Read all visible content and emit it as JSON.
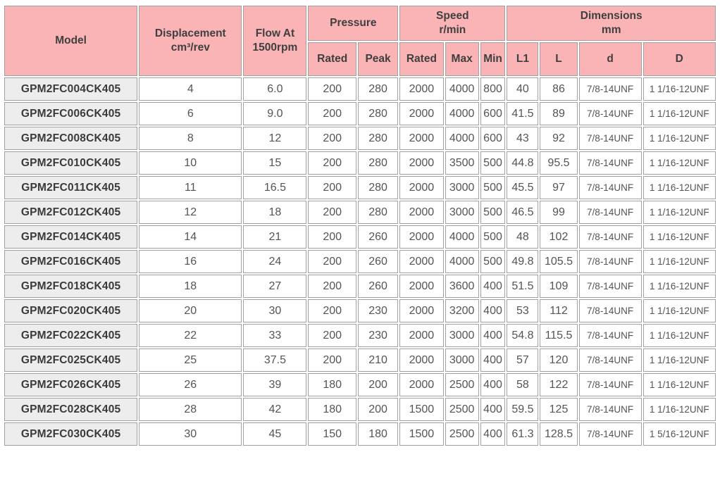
{
  "table": {
    "header": {
      "model": "Model",
      "displacement": "Displacement\ncm³/rev",
      "flow": "Flow At\n1500rpm",
      "pressure": "Pressure",
      "pressure_sub": [
        "Rated",
        "Peak"
      ],
      "speed": "Speed\nr/min",
      "speed_sub": [
        "Rated",
        "Max",
        "Min"
      ],
      "dimensions": "Dimensions\nmm",
      "dimensions_sub": [
        "L1",
        "L",
        "d",
        "D"
      ]
    },
    "rows": [
      [
        "GPM2FC004CK405",
        "4",
        "6.0",
        "200",
        "280",
        "2000",
        "4000",
        "800",
        "40",
        "86",
        "7/8-14UNF",
        "1 1/16-12UNF"
      ],
      [
        "GPM2FC006CK405",
        "6",
        "9.0",
        "200",
        "280",
        "2000",
        "4000",
        "600",
        "41.5",
        "89",
        "7/8-14UNF",
        "1 1/16-12UNF"
      ],
      [
        "GPM2FC008CK405",
        "8",
        "12",
        "200",
        "280",
        "2000",
        "4000",
        "600",
        "43",
        "92",
        "7/8-14UNF",
        "1 1/16-12UNF"
      ],
      [
        "GPM2FC010CK405",
        "10",
        "15",
        "200",
        "280",
        "2000",
        "3500",
        "500",
        "44.8",
        "95.5",
        "7/8-14UNF",
        "1 1/16-12UNF"
      ],
      [
        "GPM2FC011CK405",
        "11",
        "16.5",
        "200",
        "280",
        "2000",
        "3000",
        "500",
        "45.5",
        "97",
        "7/8-14UNF",
        "1 1/16-12UNF"
      ],
      [
        "GPM2FC012CK405",
        "12",
        "18",
        "200",
        "280",
        "2000",
        "3000",
        "500",
        "46.5",
        "99",
        "7/8-14UNF",
        "1 1/16-12UNF"
      ],
      [
        "GPM2FC014CK405",
        "14",
        "21",
        "200",
        "260",
        "2000",
        "4000",
        "500",
        "48",
        "102",
        "7/8-14UNF",
        "1 1/16-12UNF"
      ],
      [
        "GPM2FC016CK405",
        "16",
        "24",
        "200",
        "260",
        "2000",
        "4000",
        "500",
        "49.8",
        "105.5",
        "7/8-14UNF",
        "1 1/16-12UNF"
      ],
      [
        "GPM2FC018CK405",
        "18",
        "27",
        "200",
        "260",
        "2000",
        "3600",
        "400",
        "51.5",
        "109",
        "7/8-14UNF",
        "1 1/16-12UNF"
      ],
      [
        "GPM2FC020CK405",
        "20",
        "30",
        "200",
        "230",
        "2000",
        "3200",
        "400",
        "53",
        "112",
        "7/8-14UNF",
        "1 1/16-12UNF"
      ],
      [
        "GPM2FC022CK405",
        "22",
        "33",
        "200",
        "230",
        "2000",
        "3000",
        "400",
        "54.8",
        "115.5",
        "7/8-14UNF",
        "1 1/16-12UNF"
      ],
      [
        "GPM2FC025CK405",
        "25",
        "37.5",
        "200",
        "210",
        "2000",
        "3000",
        "400",
        "57",
        "120",
        "7/8-14UNF",
        "1 1/16-12UNF"
      ],
      [
        "GPM2FC026CK405",
        "26",
        "39",
        "180",
        "200",
        "2000",
        "2500",
        "400",
        "58",
        "122",
        "7/8-14UNF",
        "1 1/16-12UNF"
      ],
      [
        "GPM2FC028CK405",
        "28",
        "42",
        "180",
        "200",
        "1500",
        "2500",
        "400",
        "59.5",
        "125",
        "7/8-14UNF",
        "1 1/16-12UNF"
      ],
      [
        "GPM2FC030CK405",
        "30",
        "45",
        "150",
        "180",
        "1500",
        "2500",
        "400",
        "61.3",
        "128.5",
        "7/8-14UNF",
        "1 5/16-12UNF"
      ]
    ]
  },
  "colors": {
    "header_bg": "#FAB4B6",
    "model_column_bg": "#EDEDED",
    "grid_line": "#A0A0A0",
    "header_text": "#3F3F3F",
    "data_text": "#545454"
  }
}
